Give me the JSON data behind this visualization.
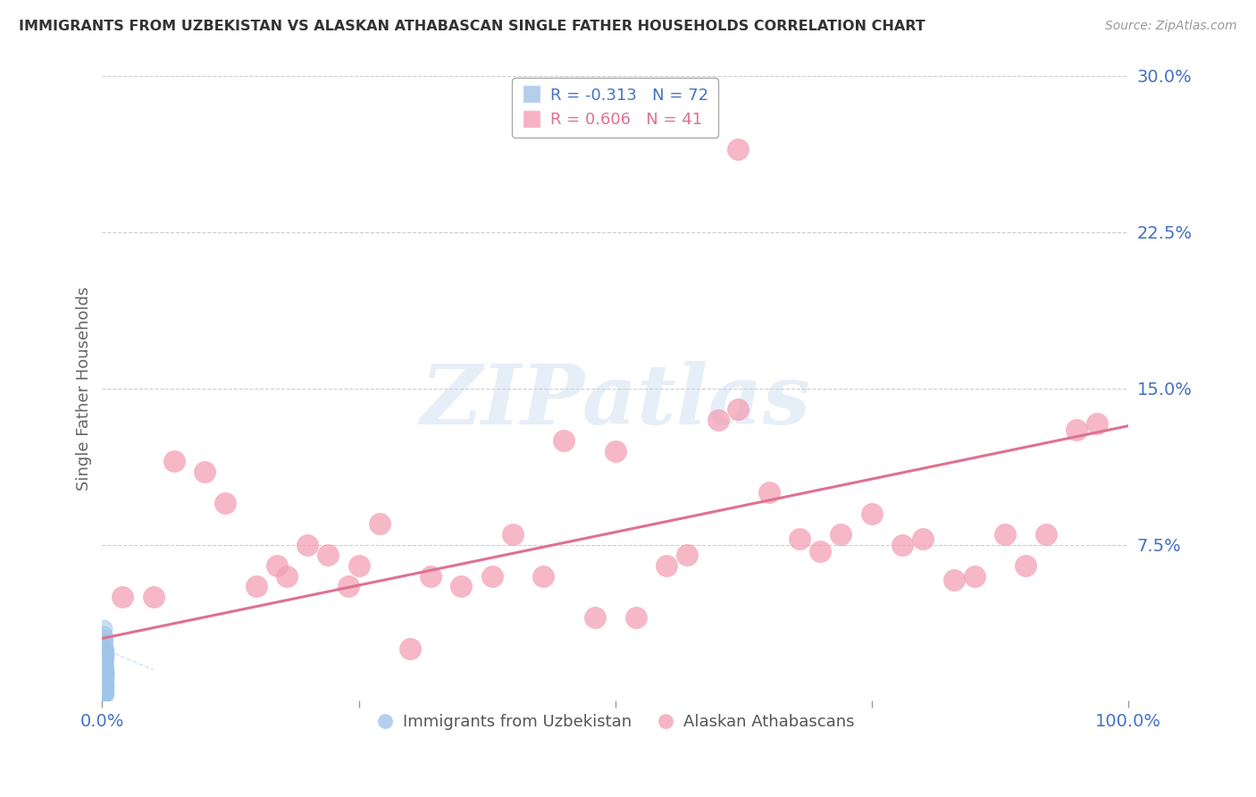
{
  "title": "IMMIGRANTS FROM UZBEKISTAN VS ALASKAN ATHABASCAN SINGLE FATHER HOUSEHOLDS CORRELATION CHART",
  "source": "Source: ZipAtlas.com",
  "ylabel": "Single Father Households",
  "xlim": [
    0.0,
    1.0
  ],
  "ylim": [
    0.0,
    0.3
  ],
  "yticks": [
    0.0,
    0.075,
    0.15,
    0.225,
    0.3
  ],
  "ytick_labels": [
    "",
    "7.5%",
    "15.0%",
    "22.5%",
    "30.0%"
  ],
  "xticks": [
    0.0,
    0.25,
    0.5,
    0.75,
    1.0
  ],
  "xtick_labels": [
    "0.0%",
    "",
    "",
    "",
    "100.0%"
  ],
  "blue_label": "Immigrants from Uzbekistan",
  "blue_R": -0.313,
  "blue_N": 72,
  "blue_color": "#a0c4e8",
  "pink_label": "Alaskan Athabascans",
  "pink_R": 0.606,
  "pink_N": 41,
  "pink_color": "#f4a0b5",
  "pink_trend_x": [
    0.0,
    1.0
  ],
  "pink_trend_y": [
    0.03,
    0.132
  ],
  "blue_trend_x": [
    0.0,
    0.05
  ],
  "blue_trend_y": [
    0.025,
    0.015
  ],
  "pink_x": [
    0.02,
    0.05,
    0.07,
    0.1,
    0.12,
    0.15,
    0.17,
    0.18,
    0.2,
    0.22,
    0.24,
    0.25,
    0.27,
    0.3,
    0.32,
    0.35,
    0.38,
    0.4,
    0.43,
    0.45,
    0.48,
    0.5,
    0.52,
    0.55,
    0.57,
    0.6,
    0.62,
    0.65,
    0.68,
    0.7,
    0.72,
    0.75,
    0.78,
    0.8,
    0.83,
    0.85,
    0.88,
    0.9,
    0.92,
    0.95,
    0.97
  ],
  "pink_y": [
    0.05,
    0.05,
    0.115,
    0.11,
    0.095,
    0.055,
    0.065,
    0.06,
    0.075,
    0.07,
    0.055,
    0.065,
    0.085,
    0.025,
    0.06,
    0.055,
    0.06,
    0.08,
    0.06,
    0.125,
    0.04,
    0.12,
    0.04,
    0.065,
    0.07,
    0.135,
    0.14,
    0.1,
    0.078,
    0.072,
    0.08,
    0.09,
    0.075,
    0.078,
    0.058,
    0.06,
    0.08,
    0.065,
    0.08,
    0.13,
    0.133
  ],
  "pink_high_x": [
    0.62
  ],
  "pink_high_y": [
    0.265
  ],
  "blue_x": [
    0.001,
    0.002,
    0.001,
    0.002,
    0.003,
    0.001,
    0.002,
    0.001,
    0.003,
    0.002,
    0.001,
    0.002,
    0.001,
    0.002,
    0.003,
    0.001,
    0.002,
    0.001,
    0.002,
    0.003,
    0.001,
    0.002,
    0.001,
    0.002,
    0.003,
    0.001,
    0.002,
    0.001,
    0.002,
    0.003,
    0.001,
    0.002,
    0.001,
    0.002,
    0.003,
    0.001,
    0.002,
    0.001,
    0.002,
    0.003,
    0.001,
    0.002,
    0.001,
    0.002,
    0.003,
    0.001,
    0.002,
    0.001,
    0.002,
    0.003,
    0.001,
    0.002,
    0.001,
    0.002,
    0.003,
    0.001,
    0.002,
    0.001,
    0.002,
    0.003,
    0.001,
    0.002,
    0.001,
    0.002,
    0.003,
    0.001,
    0.002,
    0.001,
    0.002,
    0.003,
    0.001,
    0.002
  ],
  "blue_y": [
    0.022,
    0.018,
    0.015,
    0.025,
    0.01,
    0.005,
    0.03,
    0.022,
    0.008,
    0.012,
    0.016,
    0.004,
    0.02,
    0.009,
    0.014,
    0.018,
    0.006,
    0.025,
    0.012,
    0.003,
    0.022,
    0.015,
    0.007,
    0.028,
    0.011,
    0.004,
    0.019,
    0.013,
    0.006,
    0.024,
    0.016,
    0.005,
    0.021,
    0.014,
    0.007,
    0.027,
    0.018,
    0.004,
    0.013,
    0.006,
    0.003,
    0.011,
    0.003,
    0.02,
    0.014,
    0.007,
    0.025,
    0.016,
    0.005,
    0.022,
    0.032,
    0.012,
    0.004,
    0.019,
    0.013,
    0.006,
    0.024,
    0.017,
    0.005,
    0.021,
    0.015,
    0.007,
    0.035,
    0.011,
    0.004,
    0.018,
    0.012,
    0.005,
    0.023,
    0.016,
    0.006,
    0.02
  ],
  "watermark_text": "ZIPatlas",
  "title_color": "#333333",
  "source_color": "#999999",
  "ylabel_color": "#666666",
  "tick_color": "#4472c4",
  "grid_color": "#cccccc",
  "legend_blue_R_color": "#4472c4",
  "legend_pink_R_color": "#e07090",
  "background_color": "#ffffff"
}
